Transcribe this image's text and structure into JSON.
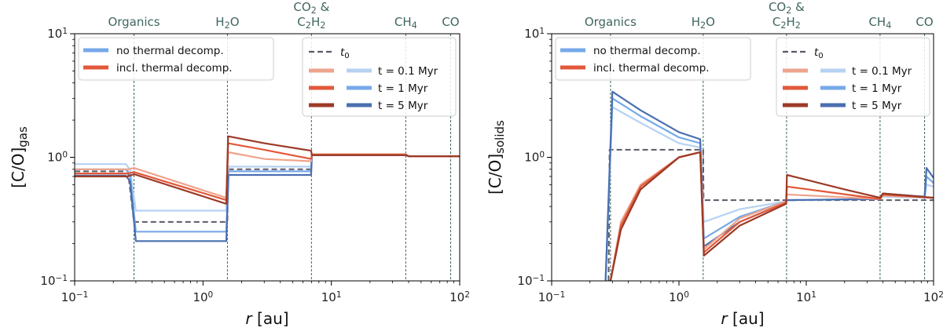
{
  "chart_data": [
    {
      "type": "line",
      "panel": "left",
      "xscale": "log",
      "yscale": "log",
      "xlim": [
        0.1,
        100
      ],
      "ylim": [
        0.1,
        10
      ],
      "xlabel": "r [au]",
      "ylabel": "[C/O]",
      "ylabel_sub": "gas",
      "x_ticks": [
        {
          "b": "10",
          "e": "−1",
          "v": 0.1
        },
        {
          "b": "10",
          "e": "0",
          "v": 1
        },
        {
          "b": "10",
          "e": "1",
          "v": 10
        },
        {
          "b": "10",
          "e": "2",
          "v": 100
        }
      ],
      "y_ticks": [
        {
          "b": "10",
          "e": "−1",
          "v": 0.1
        },
        {
          "b": "10",
          "e": "0",
          "v": 1
        },
        {
          "b": "10",
          "e": "1",
          "v": 10
        }
      ],
      "icelines": [
        {
          "r": 0.29,
          "label": "Organics"
        },
        {
          "r": 1.55,
          "label": "H2O",
          "parts": [
            "H",
            "2",
            "O"
          ]
        },
        {
          "r": 7.0,
          "label": "CO2 & C2H2",
          "parts": [
            "CO",
            "2",
            " &"
          ],
          "parts2": [
            "C",
            "2",
            "H",
            "2"
          ]
        },
        {
          "r": 38,
          "label": "CH4",
          "parts": [
            "CH",
            "4"
          ]
        },
        {
          "r": 85,
          "label": "CO",
          "parts": [
            "CO"
          ]
        }
      ],
      "legend_type": [
        "no thermal decomp.",
        "incl. thermal decomp."
      ],
      "legend_time": {
        "t0": "t",
        "t0_sub": "0",
        "times": [
          "t = 0.1 Myr",
          "t = 1 Myr",
          "t = 5 Myr"
        ]
      },
      "series": [
        {
          "name": "t0",
          "style": "dashed",
          "color": "#5a5a66",
          "points": [
            [
              0.1,
              0.77
            ],
            [
              0.26,
              0.77
            ],
            [
              0.29,
              0.3
            ],
            [
              1.55,
              0.3
            ],
            [
              1.57,
              0.8
            ],
            [
              6.95,
              0.8
            ],
            [
              7.05,
              1.05
            ],
            [
              38,
              1.05
            ],
            [
              40,
              1.02
            ],
            [
              100,
              1.02
            ]
          ]
        },
        {
          "name": "no thermal decomp. t=0.1 Myr",
          "color": "#b6d2f2",
          "points": [
            [
              0.1,
              0.88
            ],
            [
              0.25,
              0.88
            ],
            [
              0.27,
              0.8
            ],
            [
              0.3,
              0.37
            ],
            [
              1.52,
              0.37
            ],
            [
              1.58,
              0.84
            ],
            [
              6.95,
              0.84
            ],
            [
              7.05,
              1.06
            ],
            [
              38,
              1.06
            ],
            [
              40,
              1.02
            ],
            [
              100,
              1.02
            ]
          ]
        },
        {
          "name": "no thermal decomp. t=1 Myr",
          "color": "#76a9ea",
          "points": [
            [
              0.1,
              0.8
            ],
            [
              0.25,
              0.8
            ],
            [
              0.27,
              0.72
            ],
            [
              0.3,
              0.25
            ],
            [
              1.52,
              0.25
            ],
            [
              1.58,
              0.77
            ],
            [
              6.95,
              0.77
            ],
            [
              7.05,
              1.05
            ],
            [
              38,
              1.05
            ],
            [
              40,
              1.02
            ],
            [
              100,
              1.02
            ]
          ]
        },
        {
          "name": "no thermal decomp. t=5 Myr",
          "color": "#4a6fb0",
          "points": [
            [
              0.1,
              0.71
            ],
            [
              0.25,
              0.71
            ],
            [
              0.27,
              0.64
            ],
            [
              0.3,
              0.21
            ],
            [
              1.52,
              0.21
            ],
            [
              1.58,
              0.72
            ],
            [
              6.95,
              0.72
            ],
            [
              7.05,
              1.04
            ],
            [
              38,
              1.04
            ],
            [
              40,
              1.02
            ],
            [
              100,
              1.02
            ]
          ]
        },
        {
          "name": "incl. thermal decomp. t=0.1 Myr",
          "color": "#eea48c",
          "points": [
            [
              0.1,
              0.8
            ],
            [
              0.26,
              0.8
            ],
            [
              0.29,
              0.82
            ],
            [
              1.52,
              0.47
            ],
            [
              1.57,
              1.1
            ],
            [
              3,
              0.97
            ],
            [
              6.95,
              0.93
            ],
            [
              7.05,
              1.06
            ],
            [
              38,
              1.06
            ],
            [
              40,
              1.02
            ],
            [
              100,
              1.02
            ]
          ]
        },
        {
          "name": "incl. thermal decomp. t=1 Myr",
          "color": "#e2583a",
          "points": [
            [
              0.1,
              0.74
            ],
            [
              0.26,
              0.74
            ],
            [
              0.29,
              0.76
            ],
            [
              1.52,
              0.45
            ],
            [
              1.57,
              1.3
            ],
            [
              3,
              1.15
            ],
            [
              6.95,
              0.97
            ],
            [
              7.05,
              1.05
            ],
            [
              38,
              1.05
            ],
            [
              40,
              1.02
            ],
            [
              100,
              1.02
            ]
          ]
        },
        {
          "name": "incl. thermal decomp. t=5 Myr",
          "color": "#9c3a26",
          "points": [
            [
              0.1,
              0.7
            ],
            [
              0.26,
              0.7
            ],
            [
              0.29,
              0.73
            ],
            [
              1.52,
              0.42
            ],
            [
              1.57,
              1.48
            ],
            [
              3,
              1.3
            ],
            [
              6.95,
              1.13
            ],
            [
              7.05,
              1.04
            ],
            [
              38,
              1.04
            ],
            [
              40,
              1.02
            ],
            [
              100,
              1.02
            ]
          ]
        }
      ]
    },
    {
      "type": "line",
      "panel": "right",
      "xscale": "log",
      "yscale": "log",
      "xlim": [
        0.1,
        100
      ],
      "ylim": [
        0.1,
        10
      ],
      "xlabel": "r [au]",
      "ylabel": "[C/O]",
      "ylabel_sub": "solids",
      "x_ticks": [
        {
          "b": "10",
          "e": "−1",
          "v": 0.1
        },
        {
          "b": "10",
          "e": "0",
          "v": 1
        },
        {
          "b": "10",
          "e": "1",
          "v": 10
        },
        {
          "b": "10",
          "e": "2",
          "v": 100
        }
      ],
      "y_ticks": [
        {
          "b": "10",
          "e": "−1",
          "v": 0.1
        },
        {
          "b": "10",
          "e": "0",
          "v": 1
        },
        {
          "b": "10",
          "e": "1",
          "v": 10
        }
      ],
      "icelines": [
        {
          "r": 0.29,
          "label": "Organics"
        },
        {
          "r": 1.55,
          "label": "H2O",
          "parts": [
            "H",
            "2",
            "O"
          ]
        },
        {
          "r": 7.0,
          "label": "CO2 & C2H2",
          "parts": [
            "CO",
            "2",
            " &"
          ],
          "parts2": [
            "C",
            "2",
            "H",
            "2"
          ]
        },
        {
          "r": 38,
          "label": "CH4",
          "parts": [
            "CH",
            "4"
          ]
        },
        {
          "r": 85,
          "label": "CO",
          "parts": [
            "CO"
          ]
        }
      ],
      "legend_type": [
        "no thermal decomp.",
        "incl. thermal decomp."
      ],
      "legend_time": {
        "t0": "t",
        "t0_sub": "0",
        "times": [
          "t = 0.1 Myr",
          "t = 1 Myr",
          "t = 5 Myr"
        ]
      },
      "series": [
        {
          "name": "t0",
          "style": "dashed",
          "color": "#5a5a66",
          "points": [
            [
              0.28,
              0.1
            ],
            [
              0.285,
              1.15
            ],
            [
              1.55,
              1.15
            ],
            [
              1.56,
              0.45
            ],
            [
              100,
              0.45
            ]
          ]
        },
        {
          "name": "no thermal decomp. t=0.1 Myr",
          "color": "#b6d2f2",
          "points": [
            [
              0.265,
              0.1
            ],
            [
              0.3,
              2.55
            ],
            [
              0.5,
              1.9
            ],
            [
              1.0,
              1.3
            ],
            [
              1.47,
              1.2
            ],
            [
              1.57,
              0.3
            ],
            [
              3,
              0.38
            ],
            [
              6.95,
              0.44
            ],
            [
              7.05,
              0.45
            ],
            [
              38,
              0.46
            ],
            [
              40,
              0.48
            ],
            [
              85,
              0.47
            ],
            [
              88,
              0.6
            ],
            [
              100,
              0.58
            ]
          ]
        },
        {
          "name": "no thermal decomp. t=1 Myr",
          "color": "#76a9ea",
          "points": [
            [
              0.265,
              0.1
            ],
            [
              0.3,
              3.0
            ],
            [
              0.5,
              2.15
            ],
            [
              1.0,
              1.45
            ],
            [
              1.47,
              1.3
            ],
            [
              1.57,
              0.22
            ],
            [
              3,
              0.33
            ],
            [
              6.95,
              0.44
            ],
            [
              7.05,
              0.45
            ],
            [
              38,
              0.46
            ],
            [
              40,
              0.5
            ],
            [
              85,
              0.48
            ],
            [
              88,
              0.7
            ],
            [
              100,
              0.62
            ]
          ]
        },
        {
          "name": "no thermal decomp. t=5 Myr",
          "color": "#4a6fb0",
          "points": [
            [
              0.265,
              0.1
            ],
            [
              0.3,
              3.4
            ],
            [
              0.5,
              2.4
            ],
            [
              1.0,
              1.6
            ],
            [
              1.47,
              1.4
            ],
            [
              1.57,
              0.19
            ],
            [
              3,
              0.3
            ],
            [
              6.95,
              0.43
            ],
            [
              7.05,
              0.45
            ],
            [
              38,
              0.46
            ],
            [
              40,
              0.51
            ],
            [
              85,
              0.48
            ],
            [
              88,
              0.82
            ],
            [
              100,
              0.68
            ]
          ]
        },
        {
          "name": "incl. thermal decomp. t=0.1 Myr",
          "color": "#eea48c",
          "points": [
            [
              0.29,
              0.1
            ],
            [
              0.35,
              0.3
            ],
            [
              0.5,
              0.6
            ],
            [
              1.0,
              1.0
            ],
            [
              1.47,
              1.1
            ],
            [
              1.57,
              0.18
            ],
            [
              3,
              0.32
            ],
            [
              6.95,
              0.44
            ],
            [
              7.05,
              0.5
            ],
            [
              38,
              0.46
            ],
            [
              40,
              0.49
            ],
            [
              100,
              0.47
            ]
          ]
        },
        {
          "name": "incl. thermal decomp. t=1 Myr",
          "color": "#e2583a",
          "points": [
            [
              0.29,
              0.1
            ],
            [
              0.35,
              0.28
            ],
            [
              0.5,
              0.58
            ],
            [
              1.0,
              1.0
            ],
            [
              1.47,
              1.1
            ],
            [
              1.57,
              0.17
            ],
            [
              3,
              0.3
            ],
            [
              6.95,
              0.43
            ],
            [
              7.05,
              0.58
            ],
            [
              38,
              0.46
            ],
            [
              40,
              0.5
            ],
            [
              100,
              0.47
            ]
          ]
        },
        {
          "name": "incl. thermal decomp. t=5 Myr",
          "color": "#9c3a26",
          "points": [
            [
              0.29,
              0.1
            ],
            [
              0.35,
              0.26
            ],
            [
              0.5,
              0.55
            ],
            [
              1.0,
              1.0
            ],
            [
              1.47,
              1.1
            ],
            [
              1.57,
              0.16
            ],
            [
              3,
              0.28
            ],
            [
              6.95,
              0.42
            ],
            [
              7.05,
              0.72
            ],
            [
              20,
              0.55
            ],
            [
              38,
              0.47
            ],
            [
              40,
              0.51
            ],
            [
              100,
              0.47
            ]
          ]
        }
      ]
    }
  ]
}
